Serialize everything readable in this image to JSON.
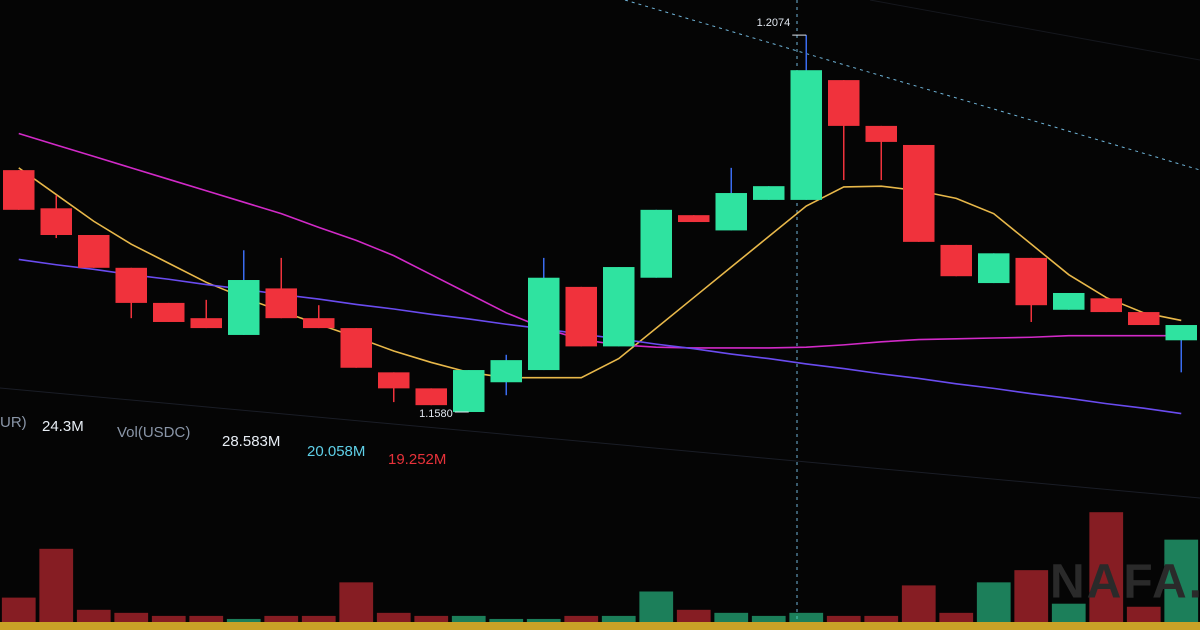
{
  "chart_data": {
    "type": "candlestick",
    "up_color": "#2fe3a0",
    "down_color": "#f0323c",
    "ylim": [
      1.1504,
      1.212
    ],
    "candles": [
      [
        1.1897,
        1.1897,
        1.1845,
        1.1845
      ],
      [
        1.1847,
        1.1864,
        1.1808,
        1.1812
      ],
      [
        1.1812,
        1.1812,
        1.1769,
        1.1769
      ],
      [
        1.1769,
        1.1769,
        1.1703,
        1.1723
      ],
      [
        1.1723,
        1.1723,
        1.1698,
        1.1698
      ],
      [
        1.1703,
        1.1727,
        1.169,
        1.169
      ],
      [
        1.1681,
        1.1792,
        1.1681,
        1.1753
      ],
      [
        1.1742,
        1.1782,
        1.1703,
        1.1703
      ],
      [
        1.1703,
        1.172,
        1.169,
        1.169
      ],
      [
        1.169,
        1.169,
        1.1638,
        1.1638
      ],
      [
        1.1632,
        1.1632,
        1.1593,
        1.1611
      ],
      [
        1.1611,
        1.1611,
        1.1589,
        1.1589
      ],
      [
        1.158,
        1.1635,
        1.158,
        1.1635
      ],
      [
        1.1619,
        1.1655,
        1.1602,
        1.1648
      ],
      [
        1.1635,
        1.1782,
        1.1635,
        1.1756
      ],
      [
        1.1744,
        1.1744,
        1.1666,
        1.1666
      ],
      [
        1.1666,
        1.177,
        1.1666,
        1.177
      ],
      [
        1.1756,
        1.1845,
        1.1756,
        1.1845
      ],
      [
        1.1838,
        1.1838,
        1.1829,
        1.1829
      ],
      [
        1.1818,
        1.19,
        1.1818,
        1.1867
      ],
      [
        1.1858,
        1.1876,
        1.1858,
        1.1876
      ],
      [
        1.1858,
        1.2074,
        1.1858,
        1.2028
      ],
      [
        1.2015,
        1.2015,
        1.1884,
        1.1955
      ],
      [
        1.1955,
        1.1955,
        1.1884,
        1.1934
      ],
      [
        1.193,
        1.193,
        1.1803,
        1.1803
      ],
      [
        1.1799,
        1.1799,
        1.1758,
        1.1758
      ],
      [
        1.1749,
        1.1788,
        1.1749,
        1.1788
      ],
      [
        1.1782,
        1.1782,
        1.1698,
        1.172
      ],
      [
        1.1714,
        1.1736,
        1.1714,
        1.1736
      ],
      [
        1.1729,
        1.1729,
        1.1711,
        1.1711
      ],
      [
        1.1711,
        1.1711,
        1.1694,
        1.1694
      ],
      [
        1.1674,
        1.1694,
        1.1632,
        1.1694
      ]
    ],
    "lines": [
      {
        "color": "#e8b84a",
        "values": [
          1.19,
          1.1865,
          1.183,
          1.18,
          1.1775,
          1.175,
          1.173,
          1.1712,
          1.1695,
          1.1678,
          1.166,
          1.1645,
          1.1632,
          1.1625,
          1.1625,
          1.1625,
          1.165,
          1.169,
          1.173,
          1.177,
          1.181,
          1.185,
          1.1875,
          1.1876,
          1.187,
          1.186,
          1.184,
          1.18,
          1.176,
          1.173,
          1.171,
          1.17
        ]
      },
      {
        "color": "#d22ac8",
        "values": [
          1.1945,
          1.193,
          1.1915,
          1.19,
          1.1885,
          1.187,
          1.1855,
          1.184,
          1.1822,
          1.1805,
          1.1785,
          1.176,
          1.1735,
          1.171,
          1.169,
          1.1675,
          1.1668,
          1.1665,
          1.1664,
          1.1664,
          1.1664,
          1.1665,
          1.1668,
          1.1672,
          1.1675,
          1.1676,
          1.1677,
          1.1678,
          1.168,
          1.168,
          1.168,
          1.168
        ]
      },
      {
        "color": "#6a4cf0",
        "values": [
          1.178,
          1.1773,
          1.1767,
          1.176,
          1.1754,
          1.1747,
          1.1741,
          1.1734,
          1.1728,
          1.1721,
          1.1715,
          1.1708,
          1.1702,
          1.1695,
          1.1689,
          1.1682,
          1.1676,
          1.1669,
          1.1663,
          1.1656,
          1.165,
          1.1643,
          1.1637,
          1.163,
          1.1624,
          1.1617,
          1.1611,
          1.1604,
          1.1598,
          1.1591,
          1.1585,
          1.1578
        ]
      }
    ],
    "annotations": [
      {
        "value": 1.2074,
        "label": "1.2074"
      },
      {
        "value": 1.158,
        "label": "1.1580"
      }
    ],
    "volume": {
      "ylim": [
        0,
        40
      ],
      "values": [
        8,
        24,
        4,
        3,
        2,
        2,
        1,
        2,
        2,
        13,
        3,
        2,
        2,
        1,
        1,
        2,
        2,
        10,
        4,
        3,
        2,
        3,
        2,
        2,
        12,
        3,
        13,
        17,
        6,
        36,
        5,
        27
      ]
    },
    "volume_legend": [
      "UR)",
      "24.3M",
      "Vol(USDC)",
      "28.583M",
      "20.058M",
      "19.252M"
    ],
    "watermark": "NAFA."
  }
}
